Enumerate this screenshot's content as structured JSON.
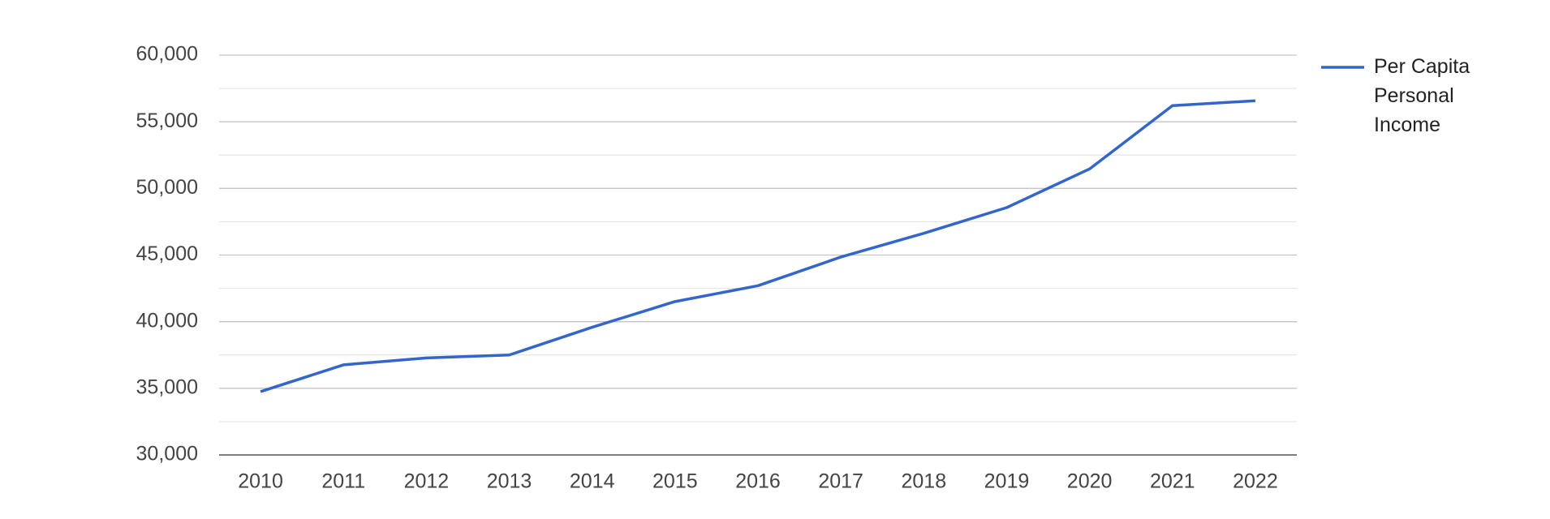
{
  "chart_data": {
    "type": "line",
    "categories": [
      "2010",
      "2011",
      "2012",
      "2013",
      "2014",
      "2015",
      "2016",
      "2017",
      "2018",
      "2019",
      "2020",
      "2021",
      "2022"
    ],
    "series": [
      {
        "name": "Per Capita Personal Income",
        "color": "#3366cc",
        "values": [
          34750,
          36760,
          37280,
          37500,
          39580,
          41510,
          42700,
          44850,
          46630,
          48560,
          51460,
          56210,
          56580
        ]
      }
    ],
    "ylim": [
      30000,
      60000
    ],
    "yticks": [
      {
        "value": 30000,
        "label": "30,000"
      },
      {
        "value": 35000,
        "label": "35,000"
      },
      {
        "value": 40000,
        "label": "40,000"
      },
      {
        "value": 45000,
        "label": "45,000"
      },
      {
        "value": 50000,
        "label": "50,000"
      },
      {
        "value": 55000,
        "label": "55,000"
      },
      {
        "value": 60000,
        "label": "60,000"
      }
    ],
    "minor_yticks": [
      32500,
      37500,
      42500,
      47500,
      52500,
      57500
    ],
    "grid": true,
    "legend": "right"
  }
}
